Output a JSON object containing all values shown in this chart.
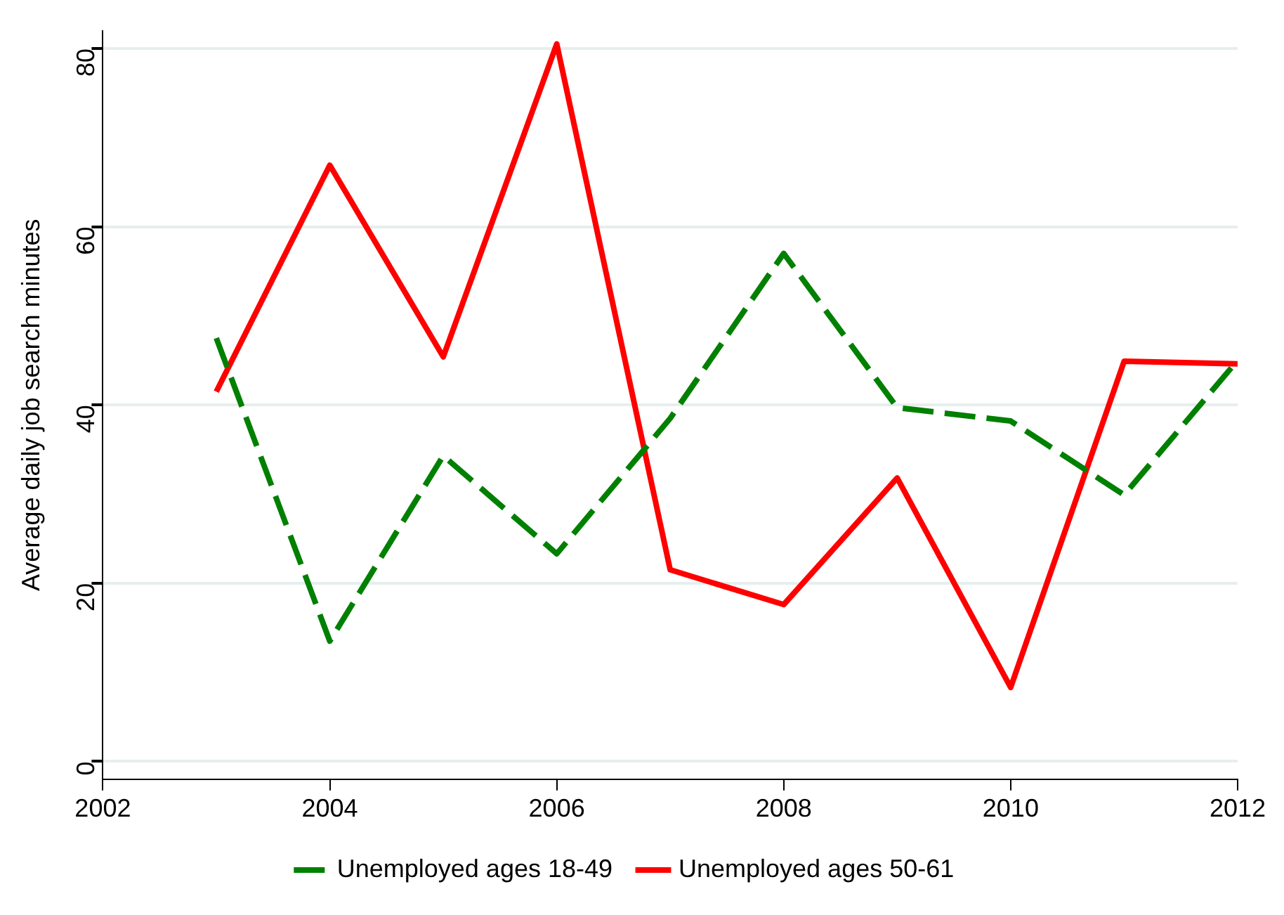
{
  "chart_data": {
    "type": "line",
    "ylabel": "Average daily job search minutes",
    "x": [
      2003,
      2004,
      2005,
      2006,
      2007,
      2008,
      2009,
      2010,
      2011,
      2012
    ],
    "series": [
      {
        "name": "Unemployed ages 18-49",
        "color": "#008000",
        "line_style": "dashed",
        "values": [
          47.5,
          13.5,
          34.3,
          23.3,
          38.5,
          57,
          39.7,
          38.2,
          29.9,
          45
        ]
      },
      {
        "name": "Unemployed ages 50-61",
        "color": "#ff0000",
        "line_style": "solid",
        "values": [
          41.5,
          66.9,
          45.4,
          80.5,
          21.5,
          17.6,
          31.8,
          8.3,
          44.9,
          44.6
        ]
      }
    ],
    "xlim": [
      2002,
      2012
    ],
    "xticks": [
      2002,
      2004,
      2006,
      2008,
      2010,
      2012
    ],
    "ylim": [
      -2,
      82
    ],
    "yticks": [
      0,
      20,
      40,
      60,
      80
    ],
    "grid": "y",
    "legend": "bottom",
    "marker": "none"
  }
}
